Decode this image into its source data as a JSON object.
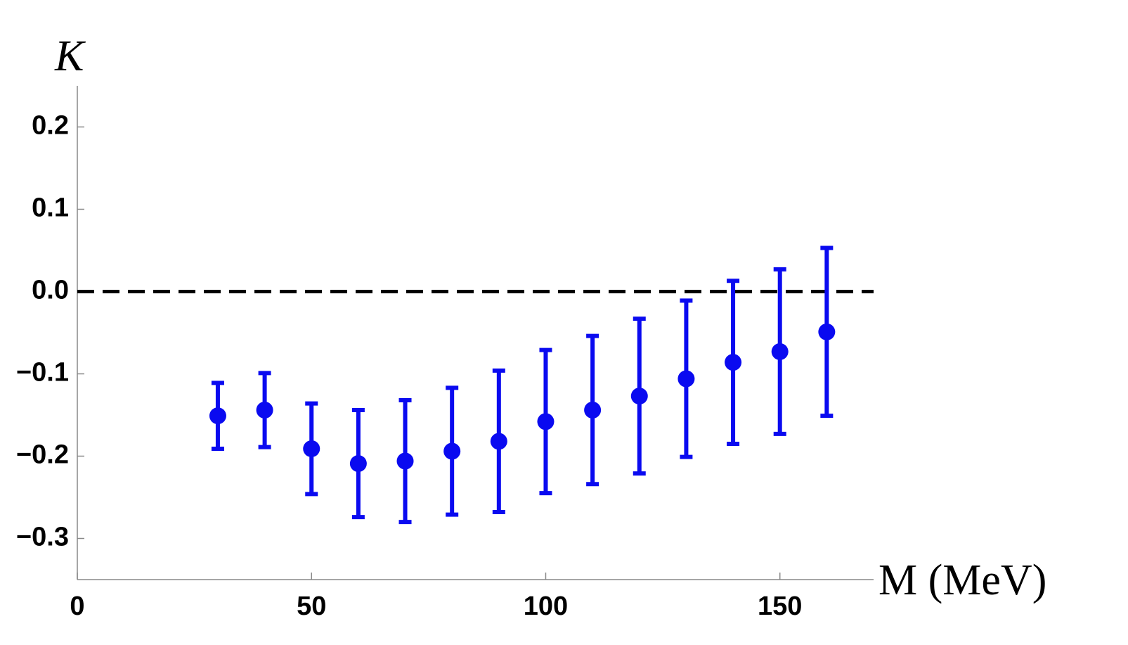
{
  "chart_data": {
    "type": "errorbar",
    "y_label": "K",
    "x_label": "M (MeV)",
    "x": [
      30,
      40,
      50,
      60,
      70,
      80,
      90,
      100,
      110,
      120,
      130,
      140,
      150,
      160
    ],
    "series": [
      {
        "color": "#0a0af0",
        "values": [
          -0.151,
          -0.144,
          -0.191,
          -0.209,
          -0.206,
          -0.194,
          -0.182,
          -0.158,
          -0.144,
          -0.127,
          -0.106,
          -0.086,
          -0.073,
          -0.049
        ],
        "errors": [
          0.04,
          0.045,
          0.055,
          0.065,
          0.074,
          0.077,
          0.086,
          0.087,
          0.09,
          0.094,
          0.095,
          0.099,
          0.1,
          0.102
        ]
      }
    ],
    "xlim": [
      0,
      170
    ],
    "ylim": [
      -0.35,
      0.25
    ],
    "xticks": [
      0,
      50,
      100,
      150
    ],
    "yticks": [
      {
        "value": -0.3,
        "label": "−0.3"
      },
      {
        "value": -0.2,
        "label": "−0.2"
      },
      {
        "value": -0.1,
        "label": "−0.1"
      },
      {
        "value": 0,
        "label": "0.0"
      },
      0.1,
      0.2
    ],
    "reference_line": {
      "y": 0,
      "style": "dashed",
      "color": "#000000"
    }
  }
}
